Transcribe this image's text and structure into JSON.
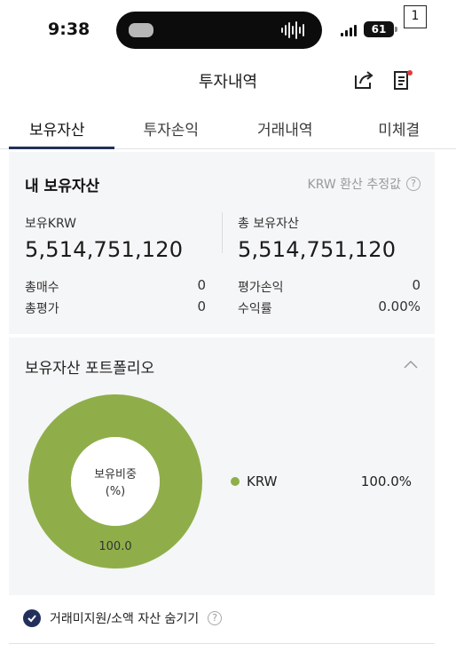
{
  "status_bar": {
    "time": "9:38",
    "battery": "61",
    "corner_badge": "1"
  },
  "header": {
    "title": "투자내역",
    "share_icon": "share-icon",
    "notice_icon": "notice-list-icon"
  },
  "tabs": [
    {
      "label": "보유자산",
      "active": true
    },
    {
      "label": "투자손익",
      "active": false
    },
    {
      "label": "거래내역",
      "active": false
    },
    {
      "label": "미체결",
      "active": false
    }
  ],
  "holdings": {
    "title": "내 보유자산",
    "krw_note": "KRW 환산 추정값",
    "left": {
      "label": "보유KRW",
      "value": "5,514,751,120",
      "rows": [
        {
          "label": "총매수",
          "value": "0"
        },
        {
          "label": "총평가",
          "value": "0"
        }
      ]
    },
    "right": {
      "label": "총 보유자산",
      "value": "5,514,751,120",
      "rows": [
        {
          "label": "평가손익",
          "value": "0"
        },
        {
          "label": "수익률",
          "value": "0.00%"
        }
      ]
    }
  },
  "portfolio": {
    "title": "보유자산 포트폴리오",
    "donut_center_line1": "보유비중",
    "donut_center_line2": "(%)",
    "donut_label": "100.0",
    "legend": [
      {
        "name": "KRW",
        "percent": "100.0%",
        "share": 1.0,
        "color": "#8fae4a"
      }
    ]
  },
  "footer": {
    "hide_label": "거래미지원/소액 자산 숨기기",
    "hide_checked": true
  },
  "colors": {
    "accent": "#23305c",
    "krw_green": "#8fae4a",
    "panel_bg": "#f5f6f7"
  }
}
